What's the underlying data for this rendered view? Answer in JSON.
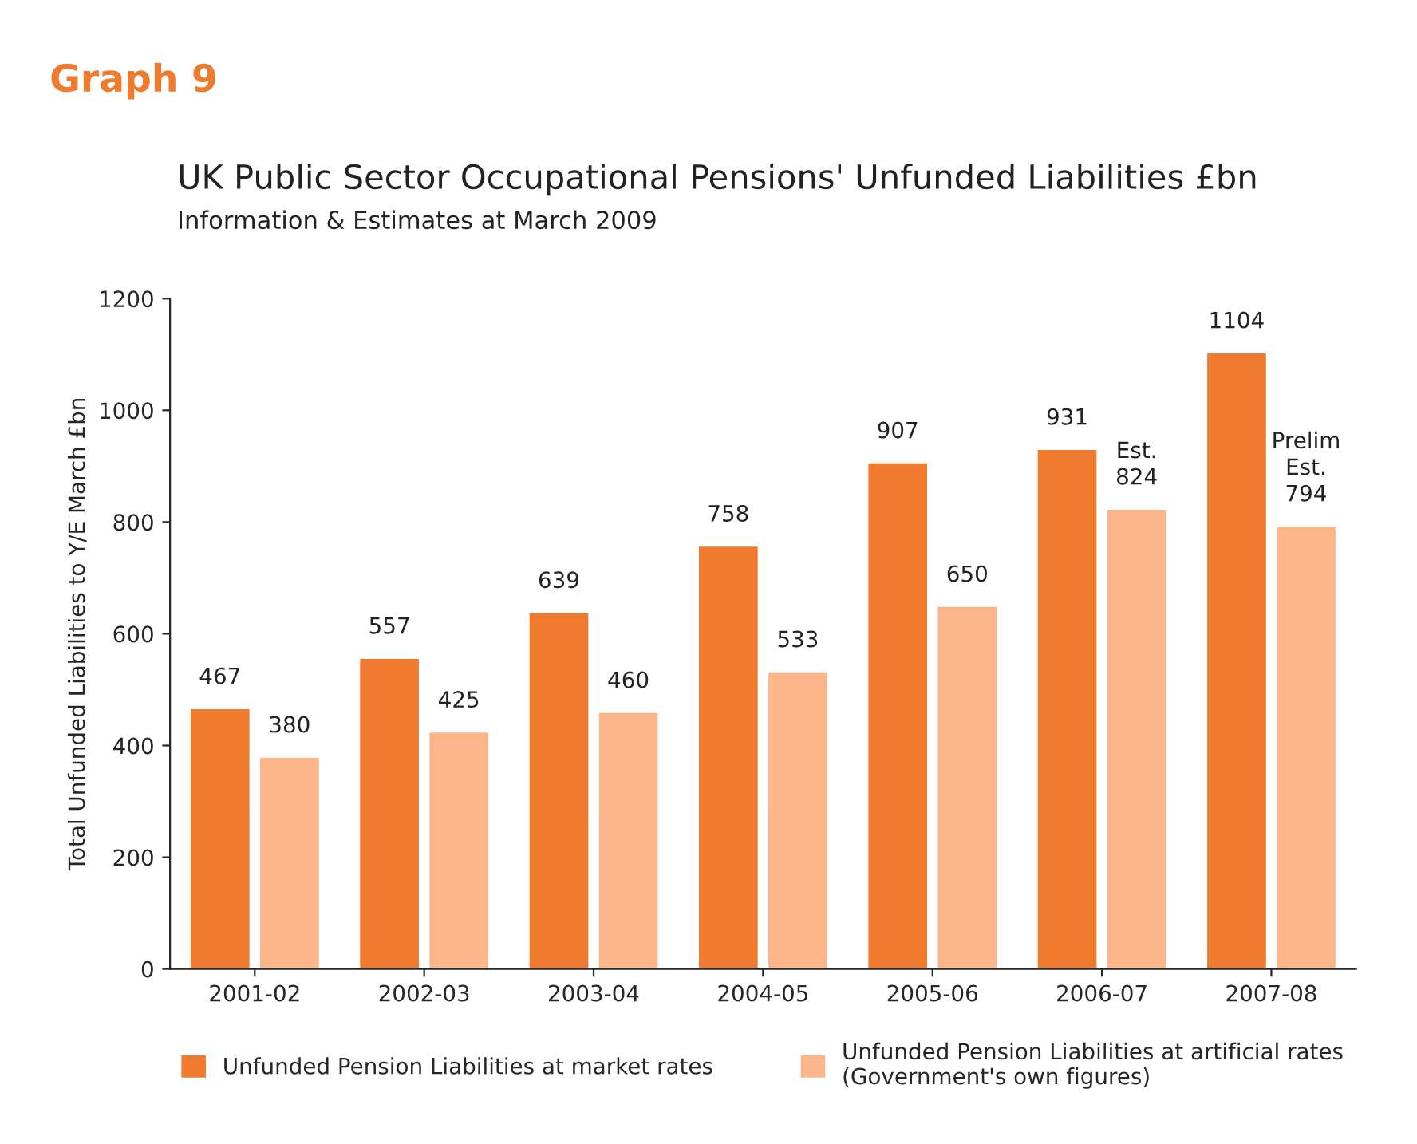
{
  "chart_data": {
    "type": "bar",
    "title": "UK Public Sector Occupational Pensions' Unfunded Liabilities £bn",
    "subtitle": "Information & Estimates at March 2009",
    "ylabel": "Total Unfunded Liabilities to Y/E March £bn",
    "annotations": [
      "Graph 9"
    ],
    "categories": [
      "2001-02",
      "2002-03",
      "2003-04",
      "2004-05",
      "2005-06",
      "2006-07",
      "2007-08"
    ],
    "series": [
      {
        "name": "Unfunded Pension Liabilities at market rates",
        "color": "#f07a2d",
        "values": [
          467,
          557,
          639,
          758,
          907,
          931,
          1104
        ],
        "value_labels": [
          "467",
          "557",
          "639",
          "758",
          "907",
          "931",
          "1104"
        ]
      },
      {
        "name": "Unfunded Pension Liabilities at artificial rates\n(Government's own figures)",
        "color": "#fdb68a",
        "values": [
          380,
          425,
          460,
          533,
          650,
          824,
          794
        ],
        "value_labels": [
          "380",
          "425",
          "460",
          "533",
          "650",
          "Est.\n824",
          "Prelim\nEst.\n794"
        ]
      }
    ],
    "ylim": [
      0,
      1200
    ],
    "yticks": [
      0,
      200,
      400,
      600,
      800,
      1000,
      1200
    ],
    "grid": false,
    "legend": "bottom"
  }
}
